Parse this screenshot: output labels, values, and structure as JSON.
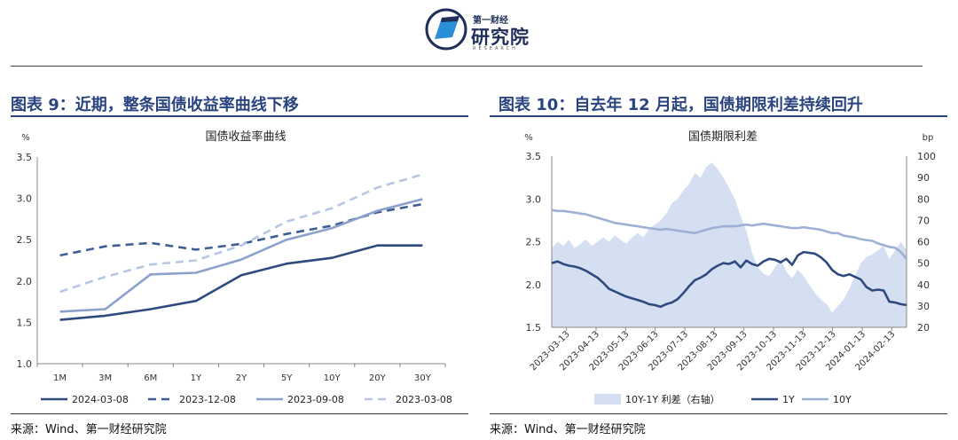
{
  "header": {
    "logo_small": "第一财经",
    "logo_big": "研究院",
    "logo_en": "RESEARCH"
  },
  "left": {
    "fig_title": "图表 9：近期，整条国债收益率曲线下移",
    "source": "来源：Wind、第一财经研究院"
  },
  "right": {
    "fig_title": "图表 10：自去年 12 月起，国债期限利差持续回升",
    "source": "来源：Wind、第一财经研究院"
  },
  "colors": {
    "title_blue": "#2a4480",
    "s_2024_03_08": "#2e4a7e",
    "s_2023_12_08": "#3f5d95",
    "s_2023_09_08": "#8ca0cc",
    "s_2023_03_08": "#b8c6e4",
    "spread_fill": "#d5dff2",
    "y1": "#2e4a7e",
    "y10": "#9fb0d6"
  },
  "chart_data": [
    {
      "type": "line",
      "title": "国债收益率曲线",
      "ylabel": "%",
      "ylim": [
        1.0,
        3.5
      ],
      "yticks": [
        "1.0",
        "1.5",
        "2.0",
        "2.5",
        "3.0",
        "3.5"
      ],
      "categories": [
        "1M",
        "3M",
        "6M",
        "1Y",
        "2Y",
        "5Y",
        "10Y",
        "20Y",
        "30Y"
      ],
      "legend_position": "bottom",
      "series": [
        {
          "name": "2024-03-08",
          "style": "solid",
          "color": "#2e4a7e",
          "values": [
            1.53,
            1.58,
            1.66,
            1.76,
            2.07,
            2.21,
            2.28,
            2.43,
            2.43
          ]
        },
        {
          "name": "2023-12-08",
          "style": "dashed",
          "color": "#3f5d95",
          "values": [
            2.31,
            2.42,
            2.46,
            2.38,
            2.45,
            2.57,
            2.67,
            2.83,
            2.93
          ]
        },
        {
          "name": "2023-09-08",
          "style": "solid",
          "color": "#8ca0cc",
          "values": [
            1.63,
            1.66,
            2.08,
            2.1,
            2.26,
            2.5,
            2.64,
            2.85,
            2.99
          ]
        },
        {
          "name": "2023-03-08",
          "style": "dashed",
          "color": "#b8c6e4",
          "values": [
            1.87,
            2.05,
            2.2,
            2.25,
            2.43,
            2.72,
            2.88,
            3.13,
            3.29
          ]
        }
      ]
    },
    {
      "type": "line",
      "title": "国债期限利差",
      "ylabel": "%",
      "ylabel_right": "bp",
      "ylim": [
        1.5,
        3.5
      ],
      "ylim_right": [
        20,
        100
      ],
      "yticks": [
        "1.5",
        "2.0",
        "2.5",
        "3.0",
        "3.5"
      ],
      "yticks_right": [
        "20",
        "30",
        "40",
        "50",
        "60",
        "70",
        "80",
        "90",
        "100"
      ],
      "x_labels": [
        "2023-03-13",
        "2023-04-13",
        "2023-05-13",
        "2023-06-13",
        "2023-07-13",
        "2023-08-13",
        "2023-09-13",
        "2023-10-13",
        "2023-11-13",
        "2023-12-13",
        "2024-01-13",
        "2024-02-13"
      ],
      "legend_position": "bottom",
      "series": [
        {
          "name": "10Y-1Y 利差（右轴）",
          "type": "area",
          "axis": "right",
          "color": "#d5dff2",
          "values": [
            57,
            60,
            58,
            61,
            57,
            59,
            61,
            58,
            60,
            62,
            60,
            63,
            61,
            59,
            62,
            64,
            62,
            66,
            68,
            70,
            73,
            78,
            80,
            84,
            87,
            92,
            90,
            95,
            97,
            94,
            90,
            85,
            80,
            72,
            65,
            55,
            48,
            45,
            44,
            48,
            52,
            46,
            43,
            47,
            44,
            40,
            36,
            33,
            31,
            27,
            30,
            33,
            38,
            44,
            50,
            53,
            54,
            56,
            58,
            52,
            56,
            60,
            56
          ]
        },
        {
          "name": "1Y",
          "axis": "left",
          "color": "#2e4a7e",
          "values": [
            2.25,
            2.27,
            2.24,
            2.22,
            2.21,
            2.19,
            2.16,
            2.12,
            2.08,
            2.02,
            1.95,
            1.92,
            1.89,
            1.86,
            1.84,
            1.82,
            1.8,
            1.77,
            1.76,
            1.74,
            1.77,
            1.79,
            1.83,
            1.9,
            1.98,
            2.05,
            2.08,
            2.12,
            2.18,
            2.22,
            2.25,
            2.24,
            2.27,
            2.2,
            2.28,
            2.24,
            2.22,
            2.27,
            2.3,
            2.29,
            2.26,
            2.3,
            2.23,
            2.34,
            2.38,
            2.37,
            2.36,
            2.32,
            2.26,
            2.17,
            2.12,
            2.1,
            2.12,
            2.09,
            2.06,
            1.97,
            1.93,
            1.94,
            1.93,
            1.8,
            1.79,
            1.77,
            1.76
          ]
        },
        {
          "name": "10Y",
          "axis": "left",
          "color": "#9fb0d6",
          "values": [
            2.87,
            2.86,
            2.86,
            2.85,
            2.84,
            2.83,
            2.82,
            2.8,
            2.78,
            2.76,
            2.74,
            2.72,
            2.71,
            2.7,
            2.69,
            2.68,
            2.67,
            2.66,
            2.65,
            2.64,
            2.65,
            2.64,
            2.63,
            2.62,
            2.61,
            2.6,
            2.62,
            2.64,
            2.66,
            2.67,
            2.68,
            2.68,
            2.68,
            2.69,
            2.7,
            2.69,
            2.7,
            2.71,
            2.7,
            2.69,
            2.68,
            2.67,
            2.66,
            2.66,
            2.67,
            2.66,
            2.65,
            2.64,
            2.62,
            2.6,
            2.6,
            2.57,
            2.56,
            2.55,
            2.53,
            2.52,
            2.51,
            2.48,
            2.46,
            2.44,
            2.43,
            2.38,
            2.3
          ]
        }
      ]
    }
  ]
}
